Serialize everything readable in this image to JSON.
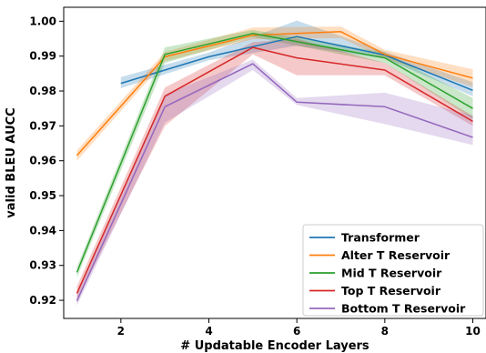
{
  "chart_data": {
    "type": "line",
    "title": "",
    "xlabel": "# Updatable Encoder Layers",
    "ylabel": "valid BLEU AUCC",
    "xlim": [
      0.7,
      10.3
    ],
    "ylim": [
      0.9148,
      1.004
    ],
    "x_ticks": [
      2,
      4,
      6,
      8,
      10
    ],
    "y_ticks": [
      0.92,
      0.93,
      0.94,
      0.95,
      0.96,
      0.97,
      0.98,
      0.99,
      1.0
    ],
    "y_tick_labels": [
      "0.92",
      "0.93",
      "0.94",
      "0.95",
      "0.96",
      "0.97",
      "0.98",
      "0.99",
      "1.00"
    ],
    "grid": false,
    "legend_position": "bottom-right",
    "series": [
      {
        "name": "Transformer",
        "color": "#1f77b4",
        "x": [
          2,
          4,
          6,
          8,
          10
        ],
        "y": [
          0.9822,
          0.9898,
          0.9956,
          0.9903,
          0.9802
        ],
        "band_low": [
          0.9808,
          0.9888,
          0.993,
          0.9893,
          0.9785
        ],
        "band_high": [
          0.984,
          0.991,
          1.0002,
          0.9913,
          0.9825
        ]
      },
      {
        "name": "Alter T Reservoir",
        "color": "#ff7f0e",
        "x": [
          1,
          3,
          5,
          7,
          8,
          10
        ],
        "y": [
          0.9615,
          0.9898,
          0.996,
          0.997,
          0.9905,
          0.9837
        ],
        "band_low": [
          0.96,
          0.9885,
          0.9948,
          0.9952,
          0.9893,
          0.9812
        ],
        "band_high": [
          0.963,
          0.9912,
          0.9982,
          0.9985,
          0.9918,
          0.9862
        ]
      },
      {
        "name": "Mid T Reservoir",
        "color": "#2ca02c",
        "x": [
          1,
          3,
          5,
          8,
          10
        ],
        "y": [
          0.928,
          0.9905,
          0.9965,
          0.9895,
          0.975
        ],
        "band_low": [
          0.9265,
          0.988,
          0.9955,
          0.988,
          0.972
        ],
        "band_high": [
          0.9295,
          0.9925,
          0.9975,
          0.991,
          0.978
        ]
      },
      {
        "name": "Top T Reservoir",
        "color": "#d62728",
        "x": [
          1,
          3,
          5,
          6,
          8,
          10
        ],
        "y": [
          0.922,
          0.9785,
          0.9925,
          0.9895,
          0.986,
          0.9713
        ],
        "band_low": [
          0.92,
          0.97,
          0.9905,
          0.9845,
          0.9845,
          0.97
        ],
        "band_high": [
          0.924,
          0.981,
          0.994,
          0.995,
          0.988,
          0.9728
        ]
      },
      {
        "name": "Bottom T Reservoir",
        "color": "#9467bd",
        "x": [
          1,
          3,
          5,
          6,
          8,
          10
        ],
        "y": [
          0.9198,
          0.9755,
          0.9878,
          0.9768,
          0.9755,
          0.9667
        ],
        "band_low": [
          0.9185,
          0.971,
          0.986,
          0.976,
          0.9705,
          0.9645
        ],
        "band_high": [
          0.9215,
          0.979,
          0.989,
          0.978,
          0.9795,
          0.973
        ]
      }
    ]
  }
}
